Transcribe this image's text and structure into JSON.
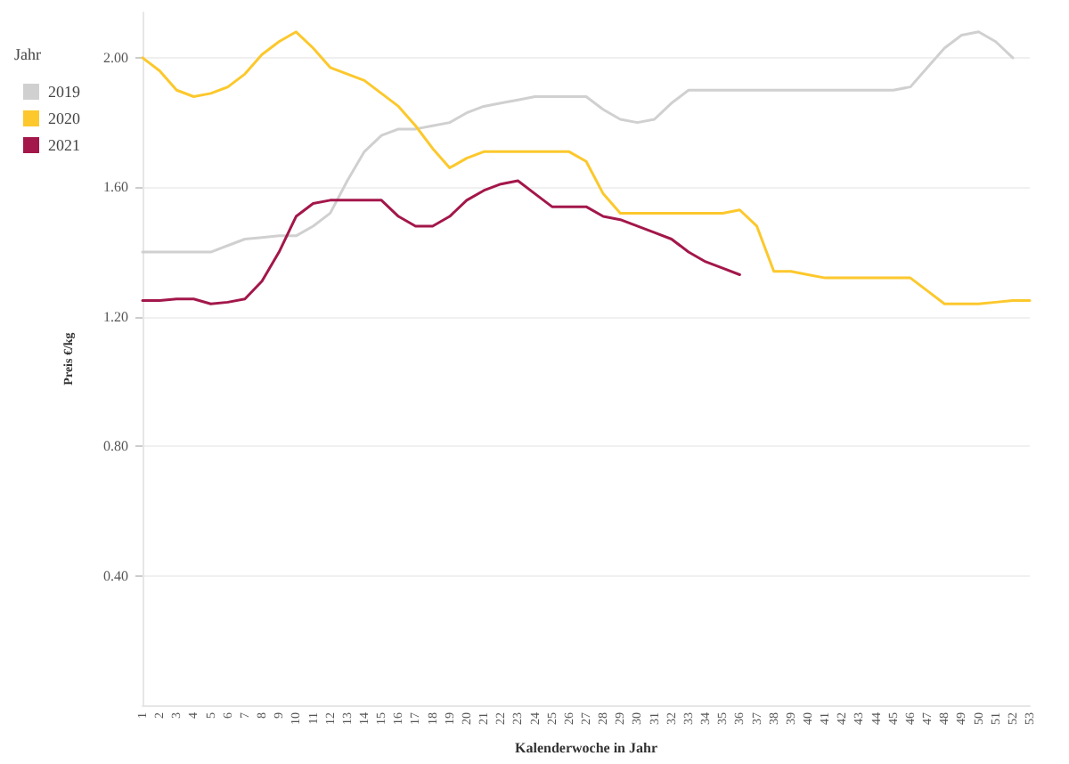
{
  "chart_data": {
    "type": "line",
    "xlabel": "Kalenderwoche in Jahr",
    "ylabel": "Preis €/kg",
    "legend_title": "Jahr",
    "legend": "left",
    "categories": [
      "1",
      "2",
      "3",
      "4",
      "5",
      "6",
      "7",
      "8",
      "9",
      "10",
      "11",
      "12",
      "13",
      "14",
      "15",
      "16",
      "17",
      "18",
      "19",
      "20",
      "21",
      "22",
      "23",
      "24",
      "25",
      "26",
      "27",
      "28",
      "29",
      "30",
      "31",
      "32",
      "33",
      "34",
      "35",
      "36",
      "37",
      "38",
      "39",
      "40",
      "41",
      "42",
      "43",
      "44",
      "45",
      "46",
      "47",
      "48",
      "49",
      "50",
      "51",
      "52",
      "53"
    ],
    "series": [
      {
        "name": "2019",
        "color": "#d0d0d0",
        "values": [
          1.4,
          1.4,
          1.4,
          1.4,
          1.4,
          1.42,
          1.44,
          1.445,
          1.45,
          1.45,
          1.48,
          1.52,
          1.62,
          1.71,
          1.76,
          1.78,
          1.78,
          1.79,
          1.8,
          1.83,
          1.85,
          1.86,
          1.87,
          1.88,
          1.88,
          1.88,
          1.88,
          1.84,
          1.81,
          1.8,
          1.81,
          1.86,
          1.9,
          1.9,
          1.9,
          1.9,
          1.9,
          1.9,
          1.9,
          1.9,
          1.9,
          1.9,
          1.9,
          1.9,
          1.9,
          1.91,
          1.97,
          2.03,
          2.07,
          2.08,
          2.05,
          2.0,
          null
        ]
      },
      {
        "name": "2020",
        "color": "#fcc82c",
        "values": [
          2.0,
          1.96,
          1.9,
          1.88,
          1.89,
          1.91,
          1.95,
          2.01,
          2.05,
          2.08,
          2.03,
          1.97,
          1.95,
          1.93,
          1.89,
          1.85,
          1.79,
          1.72,
          1.66,
          1.69,
          1.71,
          1.71,
          1.71,
          1.71,
          1.71,
          1.71,
          1.68,
          1.58,
          1.52,
          1.52,
          1.52,
          1.52,
          1.52,
          1.52,
          1.52,
          1.53,
          1.48,
          1.34,
          1.34,
          1.33,
          1.32,
          1.32,
          1.32,
          1.32,
          1.32,
          1.32,
          1.28,
          1.24,
          1.24,
          1.24,
          1.245,
          1.25,
          1.25
        ]
      },
      {
        "name": "2021",
        "color": "#a3174a",
        "values": [
          1.25,
          1.25,
          1.255,
          1.255,
          1.24,
          1.245,
          1.255,
          1.31,
          1.4,
          1.51,
          1.55,
          1.56,
          1.56,
          1.56,
          1.56,
          1.51,
          1.48,
          1.48,
          1.51,
          1.56,
          1.59,
          1.61,
          1.62,
          1.58,
          1.54,
          1.54,
          1.54,
          1.51,
          1.5,
          1.48,
          1.46,
          1.44,
          1.4,
          1.37,
          1.35,
          1.33,
          null,
          null,
          null,
          null,
          null,
          null,
          null,
          null,
          null,
          null,
          null,
          null,
          null,
          null,
          null,
          null,
          null
        ]
      }
    ],
    "ylim": [
      0,
      2.14
    ],
    "yticks": [
      {
        "value": 0.4,
        "label": "0.40"
      },
      {
        "value": 0.8,
        "label": "0.80"
      },
      {
        "value": 1.2,
        "label": "1.20"
      },
      {
        "value": 1.6,
        "label": "1.60"
      },
      {
        "value": 2,
        "label": "2.00"
      }
    ],
    "grid": "y",
    "marker": "none",
    "line_style": "solid"
  }
}
